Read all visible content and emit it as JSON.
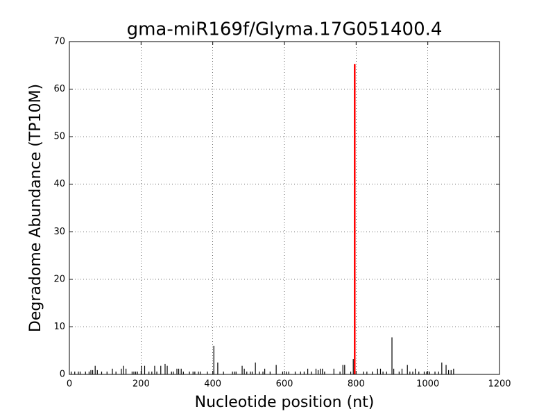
{
  "chart_data": {
    "type": "stem",
    "title": "gma-miR169f/Glyma.17G051400.4",
    "x_label": "Nucleotide position (nt)",
    "y_label": "Degradome Abundance (TP10M)",
    "xlim": [
      0,
      1200
    ],
    "xticks": [
      0,
      200,
      400,
      600,
      800,
      1000,
      1200
    ],
    "ylim": [
      0,
      70
    ],
    "yticks": [
      0,
      10,
      20,
      30,
      40,
      50,
      60,
      70
    ],
    "grid": true,
    "series": [
      {
        "color": "#000000",
        "x": [
          5,
          15,
          25,
          30,
          45,
          55,
          60,
          65,
          72,
          78,
          90,
          105,
          120,
          130,
          145,
          151,
          158,
          175,
          180,
          185,
          190,
          201,
          210,
          222,
          230,
          238,
          244,
          255,
          267,
          273,
          285,
          290,
          300,
          305,
          312,
          318,
          335,
          345,
          350,
          360,
          365,
          385,
          403,
          414,
          430,
          455,
          460,
          465,
          482,
          488,
          495,
          505,
          510,
          519,
          530,
          540,
          545,
          560,
          577,
          595,
          605,
          612,
          630,
          645,
          655,
          665,
          675,
          688,
          694,
          700,
          706,
          712,
          738,
          755,
          763,
          768,
          785,
          792,
          820,
          830,
          845,
          860,
          868,
          875,
          885,
          900,
          905,
          920,
          928,
          943,
          950,
          958,
          965,
          975,
          990,
          997,
          1005,
          1020,
          1030,
          1039,
          1051,
          1058,
          1065,
          1072
        ],
        "values": [
          0.6,
          0.6,
          0.6,
          0.6,
          0.6,
          0.6,
          0.9,
          0.9,
          1.8,
          0.9,
          0.6,
          0.6,
          1.2,
          0.6,
          1.2,
          1.8,
          1.2,
          0.6,
          0.6,
          0.6,
          0.6,
          1.8,
          1.8,
          0.6,
          0.6,
          1.8,
          0.6,
          1.8,
          2.2,
          1.8,
          0.6,
          0.6,
          1.2,
          1.2,
          1.2,
          0.6,
          0.6,
          0.6,
          0.6,
          0.6,
          0.6,
          0.6,
          6,
          2.5,
          0.6,
          0.6,
          0.6,
          0.6,
          1.8,
          1.2,
          0.6,
          0.6,
          0.6,
          2.5,
          0.6,
          0.6,
          1.2,
          0.6,
          2,
          0.6,
          0.6,
          0.6,
          0.6,
          0.6,
          0.6,
          1.2,
          0.6,
          1.2,
          0.9,
          1.2,
          1.2,
          0.6,
          1.2,
          0.6,
          2,
          2,
          0.6,
          3.2,
          0.6,
          0.6,
          0.6,
          1.2,
          1.2,
          0.6,
          0.6,
          7.8,
          1.2,
          0.6,
          1.2,
          2,
          0.6,
          0.6,
          1.2,
          0.6,
          0.6,
          0.6,
          0.6,
          0.6,
          0.6,
          2.5,
          2,
          0.9,
          0.9,
          1.2
        ]
      },
      {
        "color": "#ff0000",
        "x": [
          796
        ],
        "values": [
          65.3
        ]
      }
    ]
  }
}
